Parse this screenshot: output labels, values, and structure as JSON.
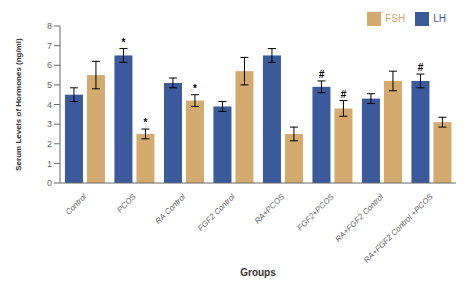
{
  "chart_data": {
    "type": "bar",
    "categories": [
      "Control",
      "PCOS",
      "RA Control",
      "FGF2 Control",
      "RA+PCOS",
      "FGF2+PCOS",
      "RA+FGF2 Control",
      "RA+FGF2 Control +PCOS"
    ],
    "series": [
      {
        "name": "LH",
        "color": "#3a5a9b",
        "values": [
          4.5,
          6.5,
          5.1,
          3.9,
          6.5,
          4.9,
          4.3,
          5.2
        ],
        "errors": [
          0.35,
          0.35,
          0.25,
          0.25,
          0.35,
          0.3,
          0.25,
          0.35
        ],
        "annotations": [
          null,
          "*",
          null,
          null,
          null,
          "#",
          null,
          "#"
        ]
      },
      {
        "name": "FSH",
        "color": "#d4aa6e",
        "values": [
          5.5,
          2.5,
          4.2,
          5.7,
          2.5,
          3.8,
          5.2,
          3.1
        ],
        "errors": [
          0.7,
          0.25,
          0.3,
          0.7,
          0.35,
          0.4,
          0.5,
          0.25
        ],
        "annotations": [
          null,
          "*",
          "*",
          null,
          null,
          "#",
          null,
          null
        ]
      }
    ],
    "xlabel": "Groups",
    "ylabel": "Serum Levels of Hormones (ng/ml)",
    "ylim": [
      0,
      8
    ],
    "yticks": [
      0,
      1,
      2,
      3,
      4,
      5,
      6,
      7,
      8
    ],
    "legend": "upper right",
    "grid": false
  }
}
